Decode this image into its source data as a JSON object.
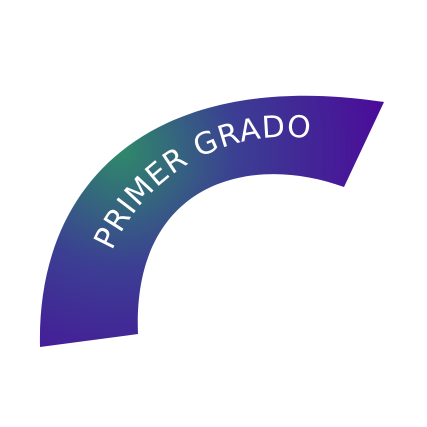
{
  "badge": {
    "label": "PRIMER GRADO",
    "colors": {
      "background": "#ffffff",
      "gradient_light": "#2f8a6a",
      "gradient_mid": "#3b3f93",
      "gradient_dark": "#4a0d9a",
      "text": "#ffffff"
    }
  }
}
